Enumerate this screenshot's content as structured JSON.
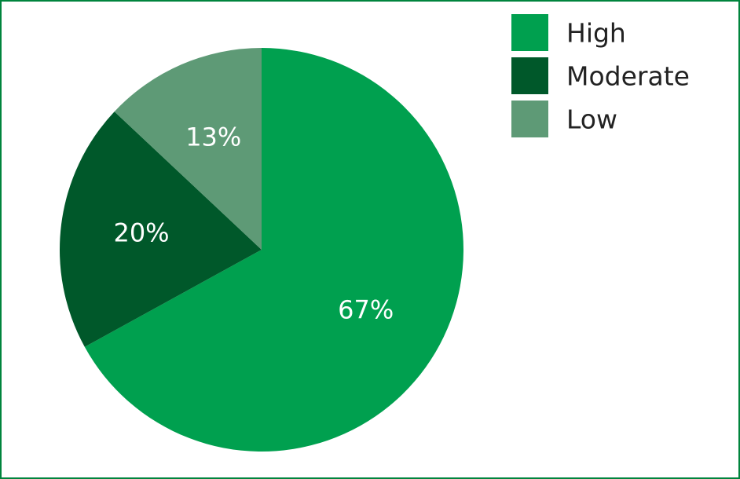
{
  "chart_data": {
    "type": "pie",
    "categories": [
      "High",
      "Moderate",
      "Low"
    ],
    "values": [
      67,
      20,
      13
    ],
    "value_labels": [
      "67%",
      "20%",
      "13%"
    ],
    "colors": [
      "#00a04f",
      "#00582a",
      "#5e9a76"
    ],
    "legend": "top-right"
  }
}
